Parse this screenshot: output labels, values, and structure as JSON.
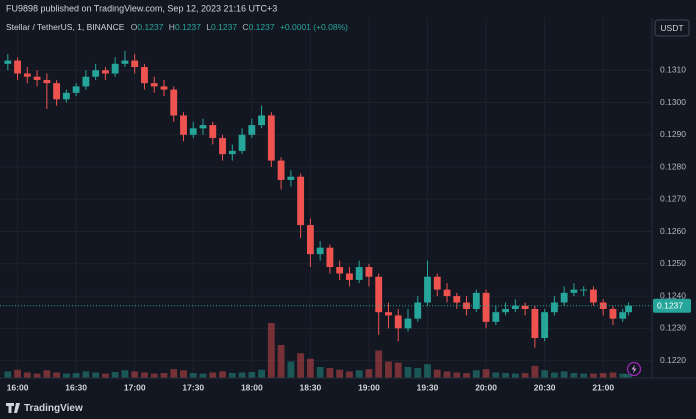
{
  "header": {
    "text": "FU9898 published on TradingView.com, Sep 12, 2023 21:16 UTC+3"
  },
  "legend": {
    "symbol": "Stellar / TetherUS, 1, BINANCE",
    "ohlc": [
      {
        "label": "O",
        "value": "0.1237"
      },
      {
        "label": "H",
        "value": "0.1237"
      },
      {
        "label": "L",
        "value": "0.1237"
      },
      {
        "label": "C",
        "value": "0.1237"
      }
    ],
    "change": "+0.0001 (+0.08%)"
  },
  "currency_button": "USDT",
  "footer": {
    "brand": "TradingView"
  },
  "chart_data": {
    "type": "candlestick",
    "x": [
      "15:55",
      "16:00",
      "16:05",
      "16:10",
      "16:15",
      "16:20",
      "16:25",
      "16:30",
      "16:35",
      "16:40",
      "16:45",
      "16:50",
      "16:55",
      "17:00",
      "17:05",
      "17:10",
      "17:15",
      "17:20",
      "17:25",
      "17:30",
      "17:35",
      "17:40",
      "17:45",
      "17:50",
      "17:55",
      "18:00",
      "18:05",
      "18:10",
      "18:15",
      "18:20",
      "18:25",
      "18:30",
      "18:35",
      "18:40",
      "18:45",
      "18:50",
      "18:55",
      "19:00",
      "19:05",
      "19:10",
      "19:15",
      "19:20",
      "19:25",
      "19:30",
      "19:35",
      "19:40",
      "19:45",
      "19:50",
      "19:55",
      "20:00",
      "20:05",
      "20:10",
      "20:15",
      "20:20",
      "20:25",
      "20:30",
      "20:35",
      "20:40",
      "20:45",
      "20:50",
      "20:55",
      "21:00",
      "21:05",
      "21:10",
      "21:13"
    ],
    "open": [
      0.1312,
      0.1313,
      0.1309,
      0.1308,
      0.1307,
      0.1306,
      0.1301,
      0.1303,
      0.1305,
      0.1308,
      0.131,
      0.1309,
      0.1312,
      0.1313,
      0.1311,
      0.1306,
      0.1305,
      0.1304,
      0.1296,
      0.129,
      0.1292,
      0.1293,
      0.1289,
      0.1284,
      0.1285,
      0.129,
      0.1293,
      0.1296,
      0.1282,
      0.1276,
      0.1277,
      0.1262,
      0.1253,
      0.1255,
      0.1249,
      0.1247,
      0.1245,
      0.1249,
      0.1246,
      0.1235,
      0.1234,
      0.123,
      0.1233,
      0.1238,
      0.1246,
      0.1242,
      0.124,
      0.1238,
      0.1236,
      0.1241,
      0.1232,
      0.1235,
      0.1236,
      0.1237,
      0.1236,
      0.1227,
      0.1235,
      0.1238,
      0.1241,
      0.1242,
      0.1242,
      0.1238,
      0.1236,
      0.1233,
      0.1235
    ],
    "high": [
      0.1315,
      0.1314,
      0.1311,
      0.131,
      0.1309,
      0.1307,
      0.1304,
      0.1306,
      0.131,
      0.1312,
      0.1311,
      0.1314,
      0.1316,
      0.1315,
      0.1312,
      0.1308,
      0.1307,
      0.1305,
      0.1297,
      0.1294,
      0.1295,
      0.1294,
      0.129,
      0.1287,
      0.1292,
      0.1295,
      0.1299,
      0.1297,
      0.1283,
      0.1279,
      0.1278,
      0.1264,
      0.1257,
      0.1256,
      0.1251,
      0.1249,
      0.1251,
      0.125,
      0.1247,
      0.1238,
      0.1236,
      0.1236,
      0.124,
      0.1251,
      0.1247,
      0.1244,
      0.1241,
      0.124,
      0.1242,
      0.1242,
      0.1237,
      0.1238,
      0.1239,
      0.1238,
      0.1237,
      0.1236,
      0.124,
      0.1243,
      0.1244,
      0.1243,
      0.1243,
      0.1239,
      0.1237,
      0.1236,
      0.1238
    ],
    "low": [
      0.131,
      0.1307,
      0.1306,
      0.1305,
      0.1298,
      0.1299,
      0.13,
      0.1302,
      0.1304,
      0.1307,
      0.1307,
      0.1308,
      0.1311,
      0.1309,
      0.1304,
      0.1303,
      0.1302,
      0.1294,
      0.1288,
      0.1289,
      0.129,
      0.1287,
      0.1282,
      0.1282,
      0.1284,
      0.1289,
      0.1292,
      0.128,
      0.1273,
      0.1274,
      0.1258,
      0.1249,
      0.1251,
      0.1247,
      0.1245,
      0.1243,
      0.1244,
      0.1243,
      0.1228,
      0.123,
      0.1226,
      0.1229,
      0.1232,
      0.1237,
      0.124,
      0.1238,
      0.1236,
      0.1234,
      0.1235,
      0.123,
      0.1231,
      0.1234,
      0.1235,
      0.1234,
      0.1224,
      0.1226,
      0.1234,
      0.1237,
      0.124,
      0.124,
      0.1237,
      0.1234,
      0.1231,
      0.1232,
      0.1234
    ],
    "close": [
      0.1313,
      0.1309,
      0.1308,
      0.1307,
      0.1306,
      0.1301,
      0.1303,
      0.1305,
      0.1308,
      0.131,
      0.1309,
      0.1312,
      0.1313,
      0.1311,
      0.1306,
      0.1305,
      0.1304,
      0.1296,
      0.129,
      0.1292,
      0.1293,
      0.1289,
      0.1284,
      0.1285,
      0.129,
      0.1293,
      0.1296,
      0.1282,
      0.1276,
      0.1277,
      0.1262,
      0.1253,
      0.1255,
      0.1249,
      0.1247,
      0.1245,
      0.1249,
      0.1246,
      0.1235,
      0.1234,
      0.123,
      0.1233,
      0.1238,
      0.1246,
      0.1242,
      0.124,
      0.1238,
      0.1236,
      0.1241,
      0.1232,
      0.1235,
      0.1236,
      0.1237,
      0.1236,
      0.1227,
      0.1235,
      0.1238,
      0.1241,
      0.1242,
      0.1242,
      0.1238,
      0.1236,
      0.1233,
      0.1235,
      0.1237
    ],
    "volume": [
      12,
      15,
      10,
      8,
      14,
      10,
      8,
      9,
      12,
      10,
      8,
      11,
      14,
      12,
      10,
      8,
      9,
      16,
      14,
      9,
      8,
      10,
      12,
      9,
      10,
      11,
      15,
      100,
      60,
      30,
      45,
      35,
      20,
      18,
      15,
      12,
      14,
      16,
      50,
      30,
      28,
      20,
      18,
      25,
      15,
      12,
      10,
      9,
      14,
      16,
      10,
      9,
      8,
      9,
      22,
      14,
      10,
      12,
      9,
      8,
      8,
      9,
      10,
      8,
      7
    ],
    "up_color": "#26a69a",
    "down_color": "#ef5350",
    "xlim": [
      "15:51",
      "21:25"
    ],
    "xticks": [
      "16:00",
      "16:30",
      "17:00",
      "17:30",
      "18:00",
      "18:30",
      "19:00",
      "19:30",
      "20:00",
      "20:30",
      "21:00"
    ],
    "ylim": [
      0.12146,
      0.132
    ],
    "yticks": [
      {
        "value": 0.122,
        "label": "0.1220"
      },
      {
        "value": 0.123,
        "label": "0.1230"
      },
      {
        "value": 0.124,
        "label": "0.1240"
      },
      {
        "value": 0.125,
        "label": "0.1250"
      },
      {
        "value": 0.126,
        "label": "0.1260"
      },
      {
        "value": 0.127,
        "label": "0.1270"
      },
      {
        "value": 0.128,
        "label": "0.1280"
      },
      {
        "value": 0.129,
        "label": "0.1290"
      },
      {
        "value": 0.13,
        "label": "0.1300"
      },
      {
        "value": 0.131,
        "label": "0.1310"
      }
    ],
    "last_price": {
      "value": 0.1237,
      "label": "0.1237"
    },
    "grid": true
  }
}
